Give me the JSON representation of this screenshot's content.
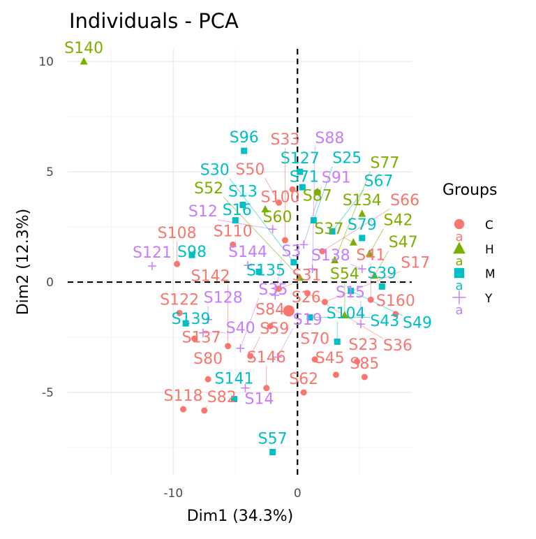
{
  "chart_data": {
    "type": "scatter",
    "title": "Individuals - PCA",
    "xlabel": "Dim1 (34.3%)",
    "ylabel": "Dim2 (12.3%)",
    "xlim": [
      -18.5,
      9.2
    ],
    "ylim": [
      -8.73,
      10.57
    ],
    "x_ticks": [
      -10,
      0
    ],
    "y_ticks": [
      -5,
      0,
      5,
      10
    ],
    "grid": true,
    "reference_lines": {
      "x": 0,
      "y": 0,
      "style": "dashed"
    },
    "legend": {
      "title": "Groups",
      "position": "right",
      "entries": [
        {
          "label": "C",
          "key": "a",
          "shape": "circle",
          "color": "#F8766D"
        },
        {
          "label": "H",
          "key": "a",
          "shape": "triangle",
          "color": "#7CAE00"
        },
        {
          "label": "M",
          "key": "a",
          "shape": "square",
          "color": "#00BFC4"
        },
        {
          "label": "Y",
          "key": "a",
          "shape": "plus",
          "color": "#C77CFF"
        }
      ]
    },
    "points": [
      {
        "label": "S140",
        "group": "H",
        "x": -17.2,
        "y": 10.0
      },
      {
        "label": "S96",
        "group": "M",
        "x": -4.3,
        "y": 5.95
      },
      {
        "label": "S98",
        "group": "M",
        "x": -8.5,
        "y": 1.23
      },
      {
        "label": "S121",
        "group": "Y",
        "x": -11.7,
        "y": 0.73
      },
      {
        "label": "S108",
        "group": "C",
        "x": -9.7,
        "y": 0.82
      },
      {
        "label": "S122",
        "group": "C",
        "x": -9.5,
        "y": -1.4
      },
      {
        "label": "S139",
        "group": "M",
        "x": -9.0,
        "y": -1.87
      },
      {
        "label": "S137",
        "group": "C",
        "x": -8.3,
        "y": -2.56
      },
      {
        "label": "S128",
        "group": "Y",
        "x": -7.2,
        "y": -1.7
      },
      {
        "label": "S40",
        "group": "Y",
        "x": -7.6,
        "y": -2.3
      },
      {
        "label": "S80",
        "group": "C",
        "x": -7.2,
        "y": -4.4
      },
      {
        "label": "S118",
        "group": "C",
        "x": -9.2,
        "y": -5.76
      },
      {
        "label": "S82",
        "group": "C",
        "x": -7.5,
        "y": -5.82
      },
      {
        "label": "S141",
        "group": "M",
        "x": -5.1,
        "y": -5.3
      },
      {
        "label": "S146",
        "group": "C",
        "x": -2.5,
        "y": -4.8
      },
      {
        "label": "S14",
        "group": "Y",
        "x": -4.2,
        "y": -4.8
      },
      {
        "label": "S59",
        "group": "C",
        "x": -3.8,
        "y": -3.35
      },
      {
        "label": "S35",
        "group": "Y",
        "x": -4.6,
        "y": -3.0
      },
      {
        "label": "S142",
        "group": "C",
        "x": -5.6,
        "y": -2.9
      },
      {
        "label": "S84",
        "group": "C",
        "x": -2.2,
        "y": -2.0
      },
      {
        "label": "S19",
        "group": "Y",
        "x": -1.6,
        "y": -3.4
      },
      {
        "label": "S57",
        "group": "M",
        "x": -2.0,
        "y": -7.7
      },
      {
        "label": "S62",
        "group": "C",
        "x": 0.5,
        "y": -5.0
      },
      {
        "label": "S45",
        "group": "C",
        "x": 3.1,
        "y": -4.2
      },
      {
        "label": "S85",
        "group": "C",
        "x": 5.4,
        "y": -4.3
      },
      {
        "label": "S23",
        "group": "C",
        "x": 4.8,
        "y": -3.6
      },
      {
        "label": "S70",
        "group": "C",
        "x": 1.4,
        "y": -3.5
      },
      {
        "label": "S104",
        "group": "M",
        "x": 3.2,
        "y": -2.7
      },
      {
        "label": "S26",
        "group": "C",
        "x": -0.7,
        "y": -1.3
      },
      {
        "label": "S160",
        "group": "C",
        "x": 7.9,
        "y": -1.45
      },
      {
        "label": "S15",
        "group": "Y",
        "x": 5.1,
        "y": -1.9
      },
      {
        "label": "S43",
        "group": "M",
        "x": 1.0,
        "y": -1.6
      },
      {
        "label": "S54",
        "group": "H",
        "x": 3.8,
        "y": -1.5
      },
      {
        "label": "S17",
        "group": "C",
        "x": 2.2,
        "y": -0.9
      },
      {
        "label": "S41",
        "group": "C",
        "x": 5.9,
        "y": -0.8
      },
      {
        "label": "S39",
        "group": "M",
        "x": 6.8,
        "y": -0.2
      },
      {
        "label": "S127",
        "group": "M",
        "x": 0.2,
        "y": 5.0
      },
      {
        "label": "S100",
        "group": "C",
        "x": -0.4,
        "y": 4.2
      },
      {
        "label": "S71",
        "group": "M",
        "x": 0.4,
        "y": 4.3
      },
      {
        "label": "S87",
        "group": "H",
        "x": 1.6,
        "y": 4.1
      },
      {
        "label": "S134",
        "group": "H",
        "x": 5.2,
        "y": 3.1
      },
      {
        "label": "S79",
        "group": "M",
        "x": 5.2,
        "y": 2.0
      },
      {
        "label": "S42",
        "group": "H",
        "x": 5.8,
        "y": 1.3
      },
      {
        "label": "S37",
        "group": "H",
        "x": 4.5,
        "y": 1.8
      },
      {
        "label": "S138",
        "group": "Y",
        "x": 5.2,
        "y": 0.6
      },
      {
        "label": "S47",
        "group": "H",
        "x": 6.2,
        "y": 0.3
      },
      {
        "label": "S13",
        "group": "M",
        "x": -4.4,
        "y": 3.5
      },
      {
        "label": "S16",
        "group": "M",
        "x": -5.0,
        "y": 2.8
      },
      {
        "label": "S110",
        "group": "C",
        "x": -5.2,
        "y": 1.7
      },
      {
        "label": "S144",
        "group": "Y",
        "x": -4.0,
        "y": 0.76
      },
      {
        "label": "S135",
        "group": "M",
        "x": -3.1,
        "y": 0.47
      },
      {
        "label": "S60",
        "group": "H",
        "x": -2.6,
        "y": 3.3
      },
      {
        "label": "S50",
        "group": "C",
        "x": -1.5,
        "y": 3.6
      },
      {
        "label": "S25",
        "group": "M",
        "x": 1.3,
        "y": 2.8
      },
      {
        "label": "S67",
        "group": "M",
        "x": 2.8,
        "y": 2.3
      },
      {
        "label": "S12",
        "group": "Y",
        "x": -2.0,
        "y": 2.4
      },
      {
        "label": "S33",
        "group": "C",
        "x": -1.0,
        "y": 1.9
      },
      {
        "label": "S91",
        "group": "Y",
        "x": 0.5,
        "y": 1.7
      },
      {
        "label": "S66",
        "group": "C",
        "x": 2.0,
        "y": 1.4
      },
      {
        "label": "S77",
        "group": "H",
        "x": 3.0,
        "y": 1.0
      },
      {
        "label": "S30",
        "group": "M",
        "x": -0.3,
        "y": 0.9
      },
      {
        "label": "S88",
        "group": "Y",
        "x": 1.2,
        "y": 0.6
      },
      {
        "label": "S52",
        "group": "H",
        "x": 0.2,
        "y": 0.2
      },
      {
        "label": "S31",
        "group": "C",
        "x": -1.5,
        "y": -0.3
      },
      {
        "label": "S36",
        "group": "C",
        "x": 0.8,
        "y": -0.5
      },
      {
        "label": "S3",
        "group": "Y",
        "x": -1.8,
        "y": -0.6
      },
      {
        "label": "S49",
        "group": "M",
        "x": 4.3,
        "y": -0.4
      }
    ]
  }
}
